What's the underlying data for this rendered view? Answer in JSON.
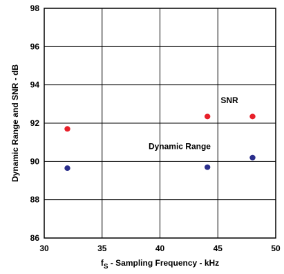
{
  "chart_data": {
    "type": "scatter",
    "title": "",
    "xlabel": {
      "main": "f",
      "subscript": "S",
      "rest": " - Sampling Frequency - kHz"
    },
    "ylabel": "Dynamic Range and SNR - dB",
    "xlim": [
      30,
      50
    ],
    "ylim": [
      86,
      98
    ],
    "xticks": [
      "30",
      "35",
      "40",
      "45",
      "50"
    ],
    "yticks": [
      "86",
      "88",
      "90",
      "92",
      "94",
      "96",
      "98"
    ],
    "grid": true,
    "series": [
      {
        "name": "SNR",
        "color": "#e8202a",
        "points": [
          {
            "x": 32,
            "y": 91.7
          },
          {
            "x": 44.1,
            "y": 92.35
          },
          {
            "x": 48,
            "y": 92.35
          }
        ]
      },
      {
        "name": "Dynamic Range",
        "color": "#2b2f8c",
        "points": [
          {
            "x": 32,
            "y": 89.65
          },
          {
            "x": 44.1,
            "y": 89.7
          },
          {
            "x": 48,
            "y": 90.2
          }
        ]
      }
    ],
    "annotations": [
      {
        "text": "SNR",
        "x": 46,
        "y": 93.05
      },
      {
        "text": "Dynamic Range",
        "x": 41.7,
        "y": 90.65
      }
    ]
  }
}
